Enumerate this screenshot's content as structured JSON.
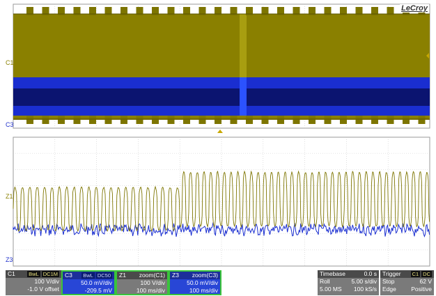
{
  "brand": "LeCroy",
  "colors": {
    "ch1": "#7d7500",
    "ch1_fill": "#8a8000",
    "ch3": "#1a2ed0",
    "ch3_dark": "#0b1470",
    "grid": "#c8c8c8",
    "panel_gray": "#7a7a7a",
    "panel_blue": "#2846d6",
    "panel_border": "#3ac43a"
  },
  "grids": {
    "top": {
      "label_ch1": "C1",
      "label_ch3": "C3"
    },
    "bottom": {
      "label_ch1": "Z1",
      "label_ch3": "Z3"
    }
  },
  "channels": {
    "c1": {
      "name": "C1",
      "tag1": "BwL",
      "tag2": "DC1M",
      "scale": "100 V/div",
      "offset": "-1.0 V offset"
    },
    "c3": {
      "name": "C3",
      "tag1": "BwL",
      "tag2": "DC50",
      "scale": "50.0 mV/div",
      "offset": "-209.5 mV"
    },
    "z1": {
      "name": "Z1",
      "title": "zoom(C1)",
      "scale": "100 V/div",
      "timebase": "100 ms/div"
    },
    "z3": {
      "name": "Z3",
      "title": "zoom(C3)",
      "scale": "50.0 mV/div",
      "timebase": "100 ms/div"
    }
  },
  "timebase": {
    "title": "Timebase",
    "delay": "0.0 s",
    "mode": "Roll",
    "per_div": "5.00 s/div",
    "samples": "5.00 MS",
    "rate": "100 kS/s"
  },
  "trigger": {
    "title": "Trigger",
    "tag1": "C1",
    "tag2": "DC",
    "state": "Stop",
    "level": "62 V",
    "type": "Edge",
    "slope": "Positive"
  }
}
